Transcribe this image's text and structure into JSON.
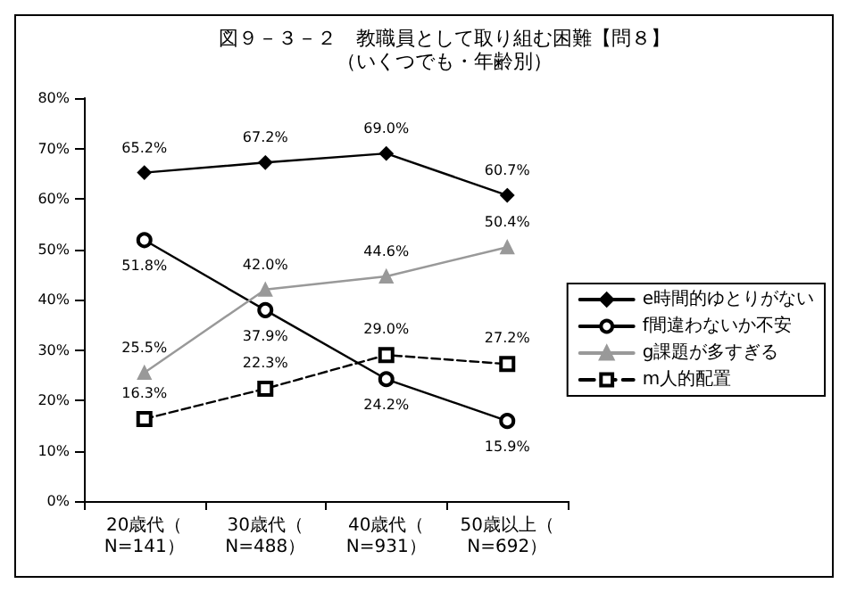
{
  "chart_data": {
    "type": "line",
    "title": "図９－３－２　教職員として取り組む困難【問８】",
    "subtitle": "（いくつでも・年齢別）",
    "categories": [
      "20歳代（N=141）",
      "30歳代（N=488）",
      "40歳代（N=931）",
      "50歳以上（N=692）"
    ],
    "series": [
      {
        "name": "e時間的ゆとりがない",
        "color": "#000000",
        "marker": "diamond",
        "line_style": "solid",
        "values": [
          65.2,
          67.2,
          69.0,
          60.7
        ],
        "value_labels": [
          "65.2%",
          "67.2%",
          "69.0%",
          "60.7%"
        ]
      },
      {
        "name": "f間違わないか不安",
        "color": "#000000",
        "marker": "circle",
        "line_style": "solid",
        "values": [
          51.8,
          37.9,
          24.2,
          15.9
        ],
        "value_labels": [
          "51.8%",
          "37.9%",
          "24.2%",
          "15.9%"
        ]
      },
      {
        "name": "g課題が多すぎる",
        "color": "#999999",
        "marker": "triangle",
        "line_style": "solid",
        "values": [
          25.5,
          42.0,
          44.6,
          50.4
        ],
        "value_labels": [
          "25.5%",
          "42.0%",
          "44.6%",
          "50.4%"
        ]
      },
      {
        "name": "m人的配置",
        "color": "#000000",
        "marker": "square",
        "line_style": "dashed",
        "values": [
          16.3,
          22.3,
          29.0,
          27.2
        ],
        "value_labels": [
          "16.3%",
          "22.3%",
          "29.0%",
          "27.2%"
        ]
      }
    ],
    "ylim": [
      0,
      80
    ],
    "yticks": [
      {
        "value": 0,
        "label": "0%"
      },
      {
        "value": 10,
        "label": "10%"
      },
      {
        "value": 20,
        "label": "20%"
      },
      {
        "value": 30,
        "label": "30%"
      },
      {
        "value": 40,
        "label": "40%"
      },
      {
        "value": 50,
        "label": "50%"
      },
      {
        "value": 60,
        "label": "60%"
      },
      {
        "value": 70,
        "label": "70%"
      },
      {
        "value": 80,
        "label": "80%"
      }
    ],
    "grid": false,
    "legend": "right"
  }
}
